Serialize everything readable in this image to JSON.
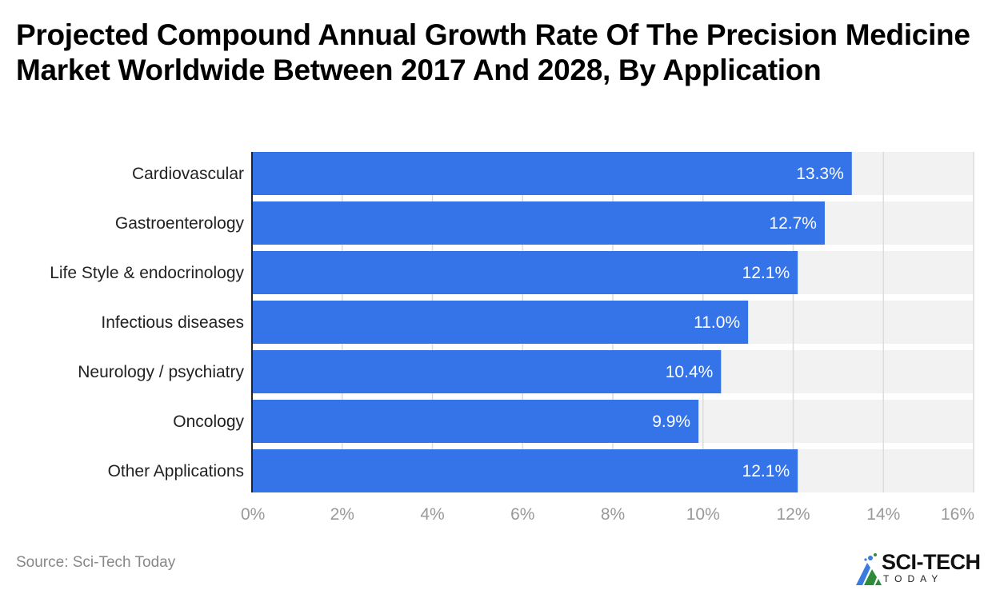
{
  "title": "Projected Compound Annual Growth Rate Of The Precision Medicine Market Worldwide Between 2017 And 2028, By Application",
  "source": "Source: Sci-Tech Today",
  "logo": {
    "name": "SCI-TECH",
    "subtitle": "TODAY",
    "icon": "sci-tech-logo-icon"
  },
  "colors": {
    "bar": "#3474e8",
    "track": "#f2f2f2",
    "grid": "#dcdcdc",
    "axis": "#222222",
    "tick_label": "#999999",
    "category_label": "#222222",
    "value_label": "#ffffff"
  },
  "chart_data": {
    "type": "bar",
    "orientation": "horizontal",
    "title": "Projected Compound Annual Growth Rate Of The Precision Medicine Market Worldwide Between 2017 And 2028, By Application",
    "categories": [
      "Cardiovascular",
      "Gastroenterology",
      "Life Style & endocrinology",
      "Infectious diseases",
      "Neurology / psychiatry",
      "Oncology",
      "Other Applications"
    ],
    "values": [
      13.3,
      12.7,
      12.1,
      11.0,
      10.4,
      9.9,
      12.1
    ],
    "value_labels": [
      "13.3%",
      "12.7%",
      "12.1%",
      "11.0%",
      "10.4%",
      "9.9%",
      "12.1%"
    ],
    "xlabel": "",
    "ylabel": "",
    "xlim": [
      0,
      16
    ],
    "xticks": [
      0,
      2,
      4,
      6,
      8,
      10,
      12,
      14,
      16
    ],
    "xtick_labels": [
      "0%",
      "2%",
      "4%",
      "6%",
      "8%",
      "10%",
      "12%",
      "14%",
      "16%"
    ],
    "grid": true,
    "legend": "none"
  }
}
